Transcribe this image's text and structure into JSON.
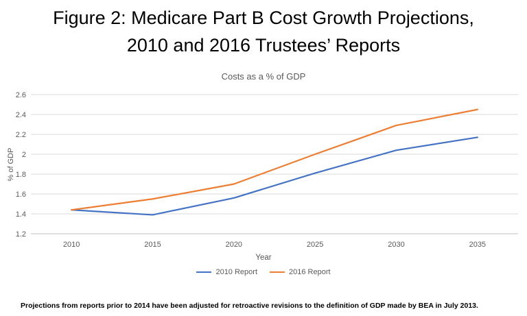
{
  "figure": {
    "title_line1": "Figure 2:  Medicare Part B Cost Growth Projections,",
    "title_line2": "2010 and 2016 Trustees’ Reports",
    "footnote": "Projections from reports prior to 2014 have been adjusted for retroactive revisions to the definition of GDP made by BEA in July 2013."
  },
  "chart_data": {
    "type": "line",
    "title": "Costs as a % of GDP",
    "xlabel": "Year",
    "ylabel": "% of GDP",
    "x": [
      2010,
      2015,
      2020,
      2025,
      2030,
      2035
    ],
    "series": [
      {
        "name": "2010 Report",
        "color": "#4472C4",
        "values": [
          1.44,
          1.39,
          1.56,
          1.81,
          2.04,
          2.17
        ]
      },
      {
        "name": "2016 Report",
        "color": "#ED7D31",
        "values": [
          1.44,
          1.55,
          1.7,
          2.0,
          2.29,
          2.45
        ]
      }
    ],
    "ylim": [
      1.2,
      2.6
    ],
    "ytick_step": 0.2,
    "grid": true,
    "legend_position": "bottom",
    "colors": {
      "axis_text": "#595959",
      "gridline": "#d9d9d9",
      "axis_line": "#bfbfbf"
    }
  }
}
